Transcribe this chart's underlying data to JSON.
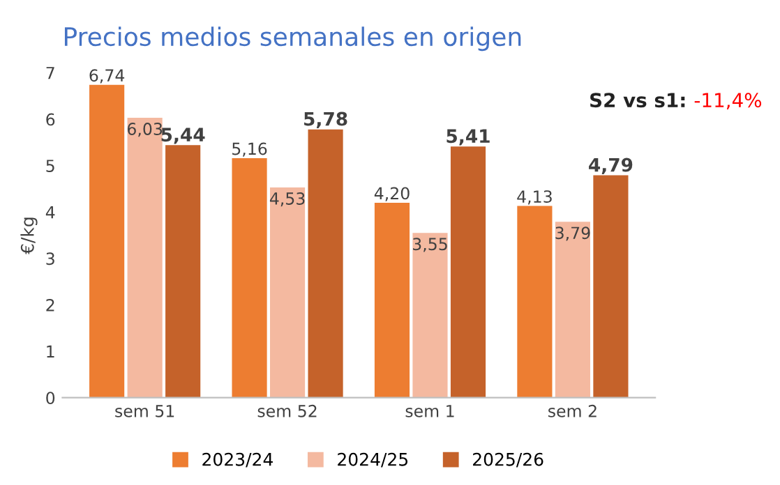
{
  "chart_data": {
    "type": "bar",
    "title": "Precios medios semanales en origen",
    "ylabel": "€/kg",
    "categories": [
      "sem 51",
      "sem 52",
      "sem 1",
      "sem 2"
    ],
    "series": [
      {
        "name": "2023/24",
        "color": "#ed7d31",
        "values": [
          6.74,
          5.16,
          4.2,
          4.13
        ],
        "value_labels": [
          "6,74",
          "5,16",
          "4,20",
          "4,13"
        ]
      },
      {
        "name": "2024/25",
        "color": "#f4b9a0",
        "values": [
          6.03,
          4.53,
          3.55,
          3.79
        ],
        "value_labels": [
          "6,03",
          "4,53",
          "3,55",
          "3,79"
        ]
      },
      {
        "name": "2025/26",
        "color": "#c5622a",
        "values": [
          5.44,
          5.78,
          5.41,
          4.79
        ],
        "value_labels": [
          "5,44",
          "5,78",
          "5,41",
          "4,79"
        ]
      }
    ],
    "ylim": [
      0,
      7
    ],
    "yticks": [
      0,
      1,
      2,
      3,
      4,
      5,
      6,
      7
    ],
    "grid": false,
    "legend": "bottom",
    "annotations": [
      "S2 vs s1: -11,4%"
    ]
  }
}
